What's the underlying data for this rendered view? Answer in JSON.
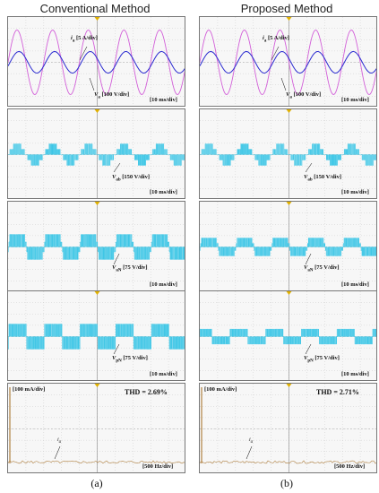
{
  "titles": {
    "left": "Conventional Method",
    "right": "Proposed Method"
  },
  "captions": {
    "left": "(a)",
    "right": "(b)"
  },
  "timebase": "[10 ms/div]",
  "freq_scale": "[500 Hz/div]",
  "current_scale": "[100 mA/div]",
  "labels": {
    "ia": "i",
    "ia_sub": "a",
    "ia_scale": " [5 A/div]",
    "va": "V",
    "va_sub": "a",
    "va_scale": "  [100 V/div]",
    "vab": "V",
    "vab_sub": "ab",
    "vab_scale": " [150 V/div]",
    "vaN": "V",
    "vaN_sub": "aN",
    "vaN_scale": " [75 V/div]",
    "vpN": "V",
    "vpN_sub": "pN",
    "vpN_scale": " [75 V/div]"
  },
  "thd": {
    "left": "THD = 2.69%",
    "right": "THD = 2.71%"
  },
  "colors": {
    "voltage": "#d25fd8",
    "current": "#2a2ad0",
    "pwm": "#3cc6e6",
    "spectrum": "#b08040",
    "marker": "#e0b000"
  }
}
